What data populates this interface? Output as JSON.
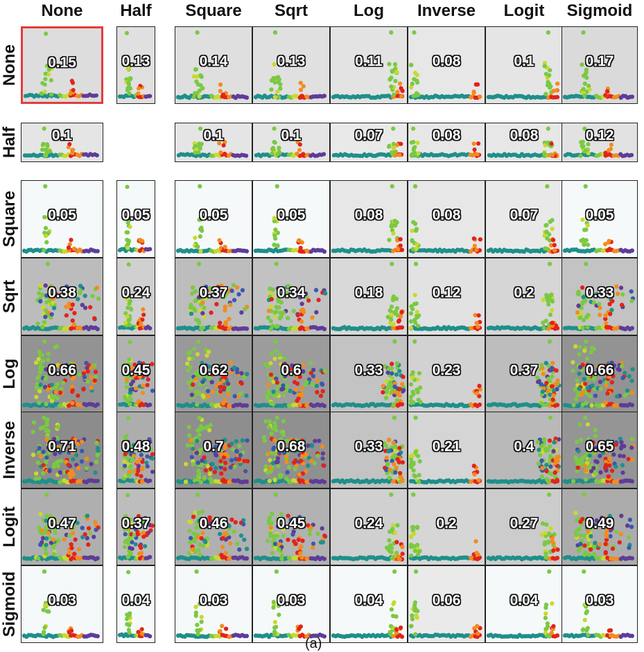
{
  "chart_data": {
    "type": "heatmap",
    "columns": [
      "None",
      "Half",
      "Square",
      "Sqrt",
      "Log",
      "Inverse",
      "Logit",
      "Sigmoid"
    ],
    "rows": [
      "None",
      "Half",
      "Square",
      "Sqrt",
      "Log",
      "Inverse",
      "Logit",
      "Sigmoid"
    ],
    "values": [
      [
        "0.15",
        "0.13",
        "0.14",
        "0.13",
        "0.11",
        "0.08",
        "0.1",
        "0.17"
      ],
      [
        "0.1",
        null,
        "0.1",
        "0.1",
        "0.07",
        "0.08",
        "0.08",
        "0.12"
      ],
      [
        "0.05",
        "0.05",
        "0.05",
        "0.05",
        "0.08",
        "0.08",
        "0.07",
        "0.05"
      ],
      [
        "0.38",
        "0.24",
        "0.37",
        "0.34",
        "0.18",
        "0.12",
        "0.2",
        "0.33"
      ],
      [
        "0.66",
        "0.45",
        "0.62",
        "0.6",
        "0.33",
        "0.23",
        "0.37",
        "0.66"
      ],
      [
        "0.71",
        "0.48",
        "0.7",
        "0.68",
        "0.33",
        "0.21",
        "0.4",
        "0.65"
      ],
      [
        "0.47",
        "0.37",
        "0.46",
        "0.45",
        "0.24",
        "0.2",
        "0.27",
        "0.49"
      ],
      [
        "0.03",
        "0.04",
        "0.03",
        "0.03",
        "0.04",
        "0.06",
        "0.04",
        "0.03"
      ]
    ],
    "highlighted_cell": {
      "row": "None",
      "column": "None"
    },
    "cell_content": "scatter plot colored by cluster, background shaded by value",
    "point_colors": [
      "#1f8f8a",
      "#7ac943",
      "#c8d92f",
      "#f28c1e",
      "#e2231a",
      "#5e3c99",
      "#3a57b0"
    ],
    "caption": "(a)"
  }
}
